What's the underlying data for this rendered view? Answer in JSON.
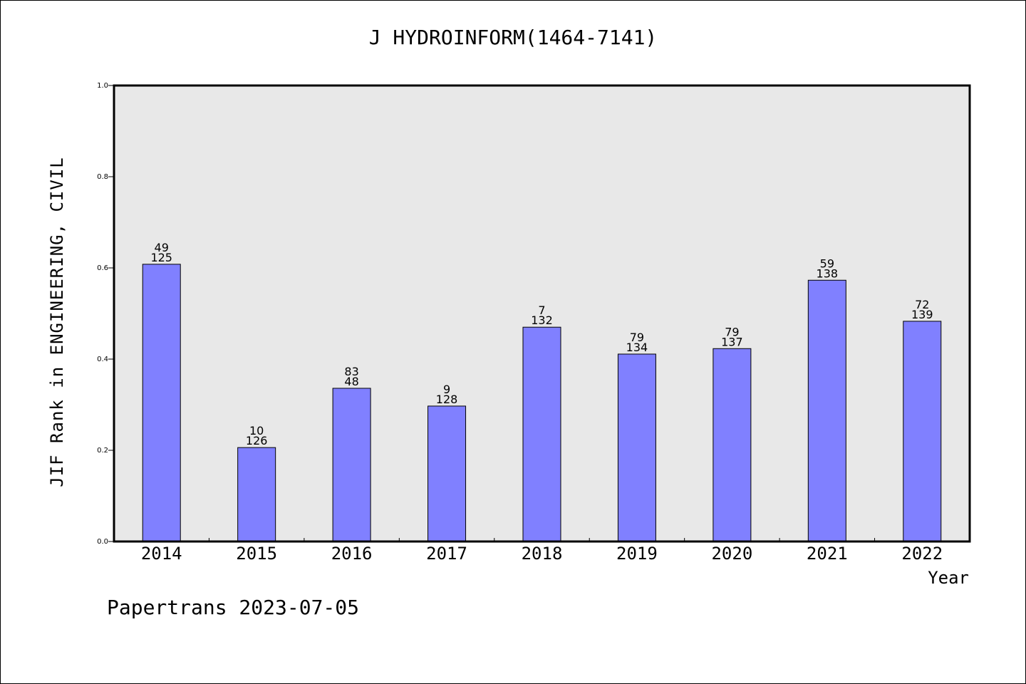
{
  "chart_data": {
    "type": "bar",
    "title": "J HYDROINFORM(1464-7141)",
    "xlabel": "Year",
    "ylabel": "JIF Rank in ENGINEERING, CIVIL",
    "ylim": [
      0,
      1.0
    ],
    "yticks": [
      "0.0",
      "0.2",
      "0.4",
      "0.6",
      "0.8",
      "1.0"
    ],
    "categories": [
      "2014",
      "2015",
      "2016",
      "2017",
      "2018",
      "2019",
      "2020",
      "2021",
      "2022"
    ],
    "values": [
      0.608,
      0.206,
      0.336,
      0.297,
      0.47,
      0.411,
      0.423,
      0.573,
      0.483
    ],
    "labels_top": [
      "49",
      "10",
      "83",
      "9",
      "7",
      "79",
      "79",
      "59",
      "72"
    ],
    "labels_bottom": [
      "125",
      "126",
      "48",
      "128",
      "132",
      "134",
      "137",
      "138",
      "139"
    ],
    "bar_color": "#8080ff",
    "background": "#e8e8e8",
    "grid": false
  },
  "footer": "Papertrans 2023-07-05"
}
